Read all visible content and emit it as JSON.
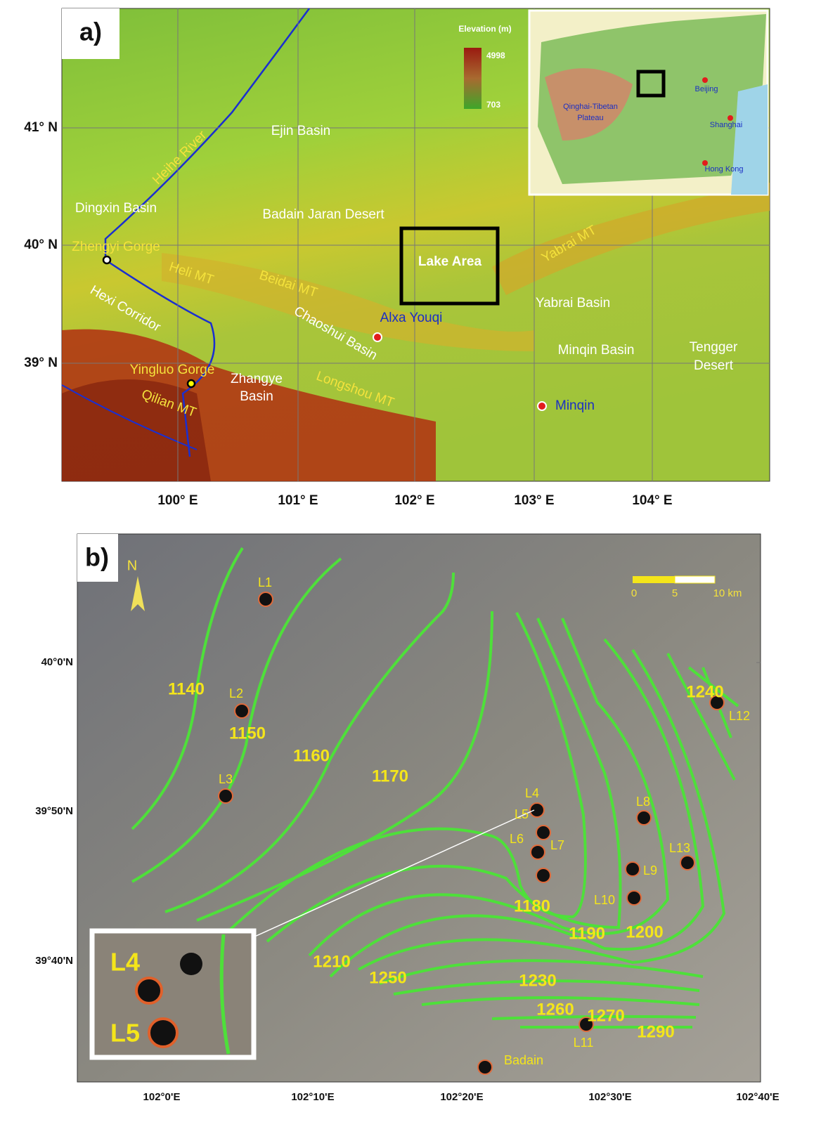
{
  "panel_a": {
    "label": "a)",
    "lat_labels": [
      "41° N",
      "40° N",
      "39° N"
    ],
    "lon_labels": [
      "100° E",
      "101° E",
      "102° E",
      "103° E",
      "104° E"
    ],
    "legend": {
      "title": "Elevation (m)",
      "max": 4998,
      "min": 703
    },
    "inset": {
      "region": [
        "Qinghai-Tibetan",
        "Plateau"
      ],
      "cities": [
        "Beijing",
        "Shanghai",
        "Hong Kong"
      ]
    },
    "places": {
      "ejin": "Ejin Basin",
      "heihe": "Heihe River",
      "dingxin": "Dingxin Basin",
      "badain": "Badain Jaran Desert",
      "zhengyi": "Zhengyi Gorge",
      "heli": "Heli MT",
      "beidai": "Beidai MT",
      "lake": "Lake Area",
      "yabrai_mt": "Yabrai MT",
      "yabrai_basin": "Yabrai Basin",
      "hexi": "Hexi Corridor",
      "chaoshui": "Chaoshui Basin",
      "alxa": "Alxa Youqi",
      "minqin_basin": "Minqin Basin",
      "tengger": [
        "Tengger",
        "Desert"
      ],
      "yingluo": "Yingluo Gorge",
      "zhangye": [
        "Zhangye",
        "Basin"
      ],
      "qilian": "Qilian MT",
      "longshou": "Longshou MT",
      "minqin": "Minqin"
    }
  },
  "panel_b": {
    "label": "b)",
    "north": "N",
    "scale": [
      "0",
      "5",
      "10 km"
    ],
    "lat_labels": [
      "40°0'N",
      "39°50'N",
      "39°40'N"
    ],
    "lon_labels": [
      "102°0'E",
      "102°10'E",
      "102°20'E",
      "102°30'E",
      "102°40'E"
    ],
    "contours": [
      1140,
      1150,
      1160,
      1170,
      1180,
      1190,
      1200,
      1210,
      1250,
      1230,
      1260,
      1270,
      1290,
      1240
    ],
    "lakes": [
      "L1",
      "L2",
      "L3",
      "L4",
      "L5",
      "L6",
      "L7",
      "L8",
      "L9",
      "L10",
      "L11",
      "L12",
      "L13",
      "Badain"
    ],
    "zoom": [
      "L4",
      "L5"
    ]
  }
}
